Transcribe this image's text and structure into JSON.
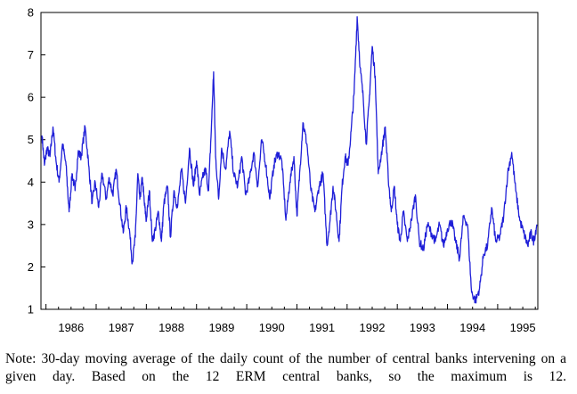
{
  "chart_data": {
    "type": "line",
    "title": "",
    "xlabel": "",
    "ylabel": "",
    "xlim": [
      1985.9,
      1995.8
    ],
    "ylim": [
      1,
      8
    ],
    "yticks": [
      1,
      2,
      3,
      4,
      5,
      6,
      7,
      8
    ],
    "xtick_labels": [
      "1986",
      "1987",
      "1988",
      "1989",
      "1990",
      "1991",
      "1992",
      "1993",
      "1994",
      "1995"
    ],
    "grid": false,
    "legend": "none",
    "line_color": "#1f1fd8",
    "series": [
      {
        "x": [
          1985.92,
          1985.97,
          1986.02,
          1986.08,
          1986.14,
          1986.2,
          1986.26,
          1986.33,
          1986.4,
          1986.46,
          1986.52,
          1986.58,
          1986.64,
          1986.7,
          1986.78,
          1986.85,
          1986.92,
          1986.98,
          1987.05,
          1987.12,
          1987.2,
          1987.26,
          1987.33,
          1987.4,
          1987.47,
          1987.54,
          1987.6,
          1987.66,
          1987.72,
          1987.78,
          1987.83,
          1987.87,
          1987.92,
          1987.96,
          1988.0,
          1988.06,
          1988.12,
          1988.18,
          1988.24,
          1988.3,
          1988.35,
          1988.42,
          1988.48,
          1988.55,
          1988.62,
          1988.7,
          1988.78,
          1988.86,
          1988.94,
          1989.0,
          1989.06,
          1989.12,
          1989.18,
          1989.24,
          1989.3,
          1989.34,
          1989.38,
          1989.44,
          1989.5,
          1989.58,
          1989.66,
          1989.74,
          1989.82,
          1989.9,
          1989.98,
          1990.06,
          1990.14,
          1990.22,
          1990.3,
          1990.38,
          1990.46,
          1990.54,
          1990.62,
          1990.7,
          1990.78,
          1990.86,
          1990.94,
          1991.0,
          1991.06,
          1991.12,
          1991.2,
          1991.28,
          1991.36,
          1991.44,
          1991.52,
          1991.6,
          1991.66,
          1991.72,
          1991.78,
          1991.84,
          1991.9,
          1991.96,
          1992.02,
          1992.08,
          1992.14,
          1992.2,
          1992.26,
          1992.32,
          1992.38,
          1992.44,
          1992.5,
          1992.56,
          1992.62,
          1992.7,
          1992.76,
          1992.82,
          1992.88,
          1992.94,
          1993.0,
          1993.06,
          1993.12,
          1993.2,
          1993.28,
          1993.36,
          1993.44,
          1993.52,
          1993.6,
          1993.68,
          1993.76,
          1993.84,
          1993.92,
          1994.0,
          1994.08,
          1994.16,
          1994.24,
          1994.32,
          1994.4,
          1994.48,
          1994.56,
          1994.64,
          1994.72,
          1994.8,
          1994.88,
          1994.96,
          1995.04,
          1995.12,
          1995.2,
          1995.28,
          1995.36,
          1995.44,
          1995.52,
          1995.6,
          1995.66,
          1995.72,
          1995.78
        ],
        "values": [
          5.1,
          4.4,
          4.8,
          4.6,
          5.3,
          4.5,
          4.0,
          4.9,
          4.4,
          3.3,
          4.2,
          3.8,
          4.7,
          4.6,
          5.3,
          4.4,
          3.5,
          4.0,
          3.4,
          4.2,
          3.6,
          4.1,
          3.7,
          4.3,
          3.5,
          2.8,
          3.4,
          2.9,
          2.1,
          2.7,
          4.2,
          3.6,
          4.1,
          3.5,
          3.1,
          3.8,
          2.6,
          2.9,
          3.3,
          2.6,
          3.5,
          3.9,
          2.7,
          3.8,
          3.4,
          4.3,
          3.5,
          4.8,
          3.9,
          4.5,
          3.7,
          4.1,
          4.3,
          3.8,
          5.4,
          6.6,
          4.6,
          3.6,
          4.8,
          4.3,
          5.2,
          4.2,
          3.9,
          4.6,
          3.7,
          4.1,
          4.7,
          3.9,
          5.0,
          4.4,
          3.6,
          4.4,
          4.7,
          4.5,
          3.1,
          4.0,
          4.6,
          3.2,
          4.3,
          5.4,
          4.9,
          3.8,
          3.3,
          3.9,
          4.2,
          2.5,
          3.1,
          3.9,
          3.3,
          2.6,
          3.9,
          4.6,
          4.4,
          5.2,
          6.1,
          7.9,
          6.7,
          6.0,
          4.9,
          5.9,
          7.2,
          6.5,
          4.2,
          4.8,
          5.3,
          4.1,
          3.3,
          3.9,
          3.0,
          2.6,
          3.3,
          2.6,
          3.1,
          3.7,
          2.6,
          2.4,
          3.0,
          2.8,
          2.6,
          3.0,
          2.5,
          2.9,
          3.1,
          2.6,
          2.2,
          3.2,
          3.0,
          1.4,
          1.2,
          1.5,
          2.3,
          2.5,
          3.4,
          2.6,
          2.7,
          3.2,
          4.2,
          4.7,
          3.8,
          3.1,
          2.8,
          2.5,
          2.8,
          2.6,
          3.0
        ]
      }
    ]
  },
  "note": "Note: 30-day moving average of the daily count of the number of central banks intervening on a given day. Based on the 12 ERM central banks, so the maximum is 12."
}
